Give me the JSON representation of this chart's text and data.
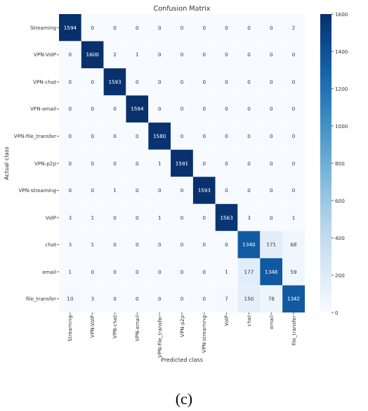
{
  "chart_data": {
    "type": "heatmap",
    "title": "Confusion Matrix",
    "xlabel": "Predicted class",
    "ylabel": "Actual class",
    "categories": [
      "Streaming",
      "VPN-VoIP",
      "VPN-chat",
      "VPN-email",
      "VPN-file_transfer",
      "VPN-p2p",
      "VPN-streaming",
      "VoIP",
      "chat",
      "email",
      "file_transfer"
    ],
    "y_categories": [
      "Streaming",
      "VPN-VoIP",
      "VPN-chat",
      "VPN-email",
      "VPN-file_transfer",
      "VPN-p2p",
      "VPN-streaming",
      "VoIP",
      "chat",
      "email",
      "file_transfer"
    ],
    "cells": [
      [
        1594,
        0,
        0,
        0,
        0,
        0,
        0,
        0,
        0,
        0,
        2
      ],
      [
        0,
        1600,
        2,
        1,
        0,
        0,
        0,
        0,
        0,
        0,
        0
      ],
      [
        0,
        0,
        1593,
        0,
        0,
        0,
        0,
        0,
        0,
        0,
        0
      ],
      [
        0,
        0,
        0,
        1594,
        0,
        0,
        0,
        0,
        0,
        0,
        0
      ],
      [
        0,
        0,
        0,
        0,
        1580,
        0,
        0,
        0,
        0,
        0,
        0
      ],
      [
        0,
        0,
        0,
        0,
        1,
        1591,
        0,
        0,
        0,
        0,
        0
      ],
      [
        0,
        0,
        1,
        0,
        0,
        0,
        1593,
        0,
        0,
        0,
        0
      ],
      [
        3,
        1,
        0,
        0,
        1,
        0,
        0,
        1563,
        3,
        0,
        1
      ],
      [
        3,
        1,
        0,
        0,
        0,
        0,
        0,
        0,
        1340,
        171,
        68
      ],
      [
        1,
        0,
        0,
        0,
        0,
        0,
        0,
        1,
        177,
        1348,
        59
      ],
      [
        10,
        3,
        0,
        0,
        0,
        0,
        0,
        7,
        150,
        78,
        1342
      ]
    ],
    "clim": [
      0,
      1600
    ],
    "cticks": [
      0,
      200,
      400,
      600,
      800,
      1000,
      1200,
      1400,
      1600
    ],
    "data_labels": true,
    "annotations": [
      "(c)"
    ]
  }
}
